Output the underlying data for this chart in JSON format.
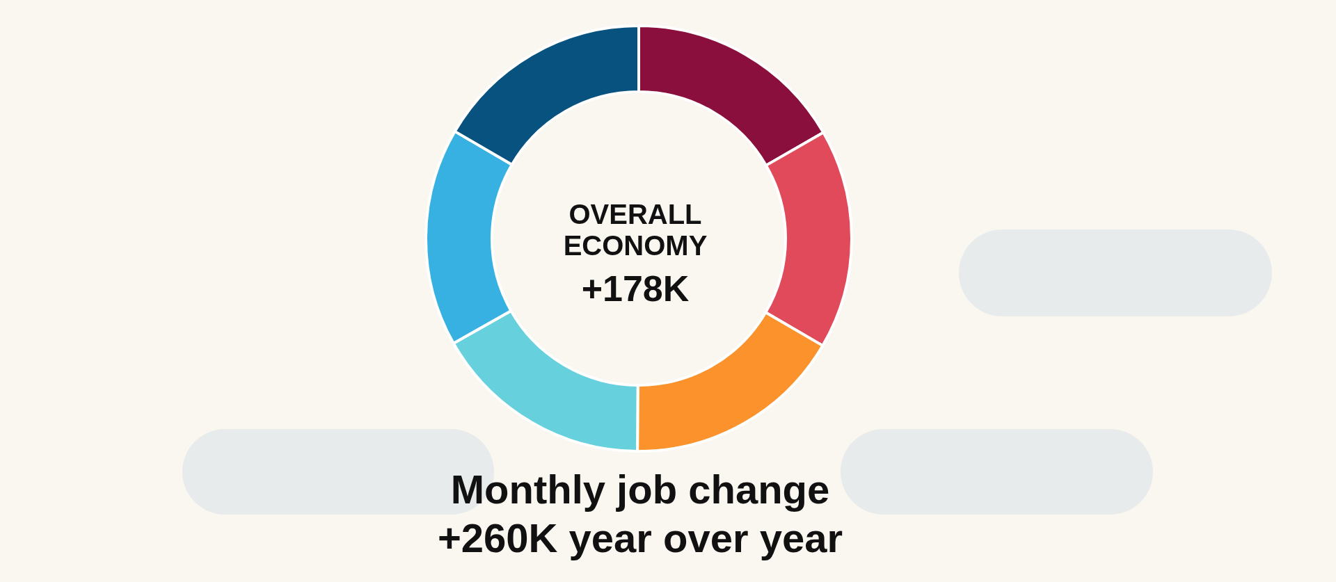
{
  "chart_data": {
    "type": "donut",
    "title": "Monthly job change",
    "subtitle": "+260K year over year",
    "annotations": [
      "OVERALL ECONOMY",
      "+178K"
    ],
    "categories": [
      null,
      null,
      null,
      null,
      null,
      null
    ],
    "values": [
      16.7,
      16.7,
      16.7,
      16.7,
      16.6,
      16.6
    ],
    "colors": [
      "#8b0f3c",
      "#e04a5a",
      "#fb922b",
      "#66d0dc",
      "#37b1e1",
      "#07527e"
    ]
  }
}
